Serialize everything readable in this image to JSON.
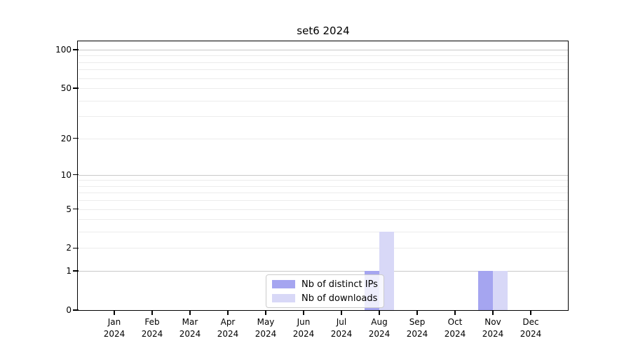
{
  "chart_data": {
    "type": "bar",
    "title": "set6 2024",
    "categories": [
      "Jan 2024",
      "Feb 2024",
      "Mar 2024",
      "Apr 2024",
      "May 2024",
      "Jun 2024",
      "Jul 2024",
      "Aug 2024",
      "Sep 2024",
      "Oct 2024",
      "Nov 2024",
      "Dec 2024"
    ],
    "series": [
      {
        "name": "Nb of distinct IPs",
        "color": "#a5a5f0",
        "values": [
          0,
          0,
          0,
          0,
          0,
          0,
          0,
          1,
          0,
          0,
          1,
          0
        ]
      },
      {
        "name": "Nb of downloads",
        "color": "#d8d8f7",
        "values": [
          0,
          0,
          0,
          0,
          0,
          0,
          0,
          3,
          0,
          0,
          1,
          0
        ]
      }
    ],
    "yscale": "log1p",
    "yticks": [
      0,
      1,
      2,
      5,
      10,
      20,
      50,
      100
    ],
    "ylim": [
      0,
      115
    ],
    "grid": "horizontal",
    "legend_position": "lower-center-inside"
  }
}
